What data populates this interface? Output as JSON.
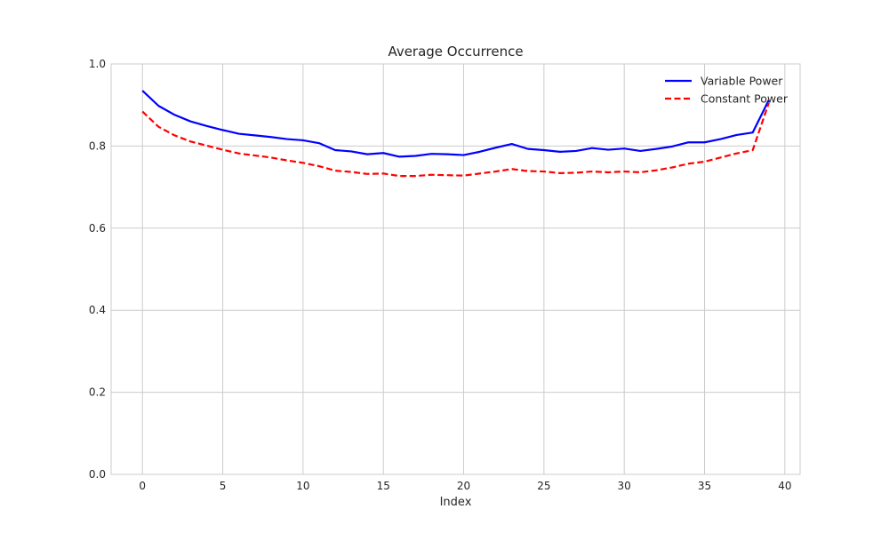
{
  "chart_data": {
    "type": "line",
    "title": "Average Occurrence",
    "xlabel": "Index",
    "ylabel": "",
    "xlim": [
      -1.95,
      40.95
    ],
    "ylim": [
      0.0,
      1.0
    ],
    "xticks": [
      0,
      5,
      10,
      15,
      20,
      25,
      30,
      35,
      40
    ],
    "yticks": [
      0.0,
      0.2,
      0.4,
      0.6,
      0.8,
      1.0
    ],
    "xtick_labels": [
      "0",
      "5",
      "10",
      "15",
      "20",
      "25",
      "30",
      "35",
      "40"
    ],
    "ytick_labels": [
      "0.0",
      "0.2",
      "0.4",
      "0.6",
      "0.8",
      "1.0"
    ],
    "grid": true,
    "legend_position": "top-right",
    "x": [
      0,
      1,
      2,
      3,
      4,
      5,
      6,
      7,
      8,
      9,
      10,
      11,
      12,
      13,
      14,
      15,
      16,
      17,
      18,
      19,
      20,
      21,
      22,
      23,
      24,
      25,
      26,
      27,
      28,
      29,
      30,
      31,
      32,
      33,
      34,
      35,
      36,
      37,
      38,
      39
    ],
    "series": [
      {
        "name": "Variable Power",
        "color": "#0000ff",
        "style": "solid",
        "values": [
          0.935,
          0.898,
          0.876,
          0.86,
          0.849,
          0.839,
          0.83,
          0.826,
          0.822,
          0.817,
          0.814,
          0.807,
          0.79,
          0.787,
          0.78,
          0.783,
          0.774,
          0.776,
          0.781,
          0.78,
          0.778,
          0.786,
          0.796,
          0.805,
          0.793,
          0.79,
          0.786,
          0.788,
          0.795,
          0.791,
          0.794,
          0.788,
          0.793,
          0.799,
          0.809,
          0.809,
          0.817,
          0.827,
          0.833,
          0.912
        ]
      },
      {
        "name": "Constant Power",
        "color": "#ff0000",
        "style": "dashed",
        "values": [
          0.884,
          0.847,
          0.826,
          0.811,
          0.801,
          0.791,
          0.782,
          0.777,
          0.772,
          0.765,
          0.759,
          0.751,
          0.74,
          0.737,
          0.732,
          0.733,
          0.727,
          0.727,
          0.73,
          0.729,
          0.728,
          0.733,
          0.738,
          0.744,
          0.739,
          0.738,
          0.734,
          0.735,
          0.738,
          0.736,
          0.738,
          0.736,
          0.741,
          0.748,
          0.757,
          0.762,
          0.772,
          0.782,
          0.79,
          0.905
        ]
      }
    ]
  }
}
